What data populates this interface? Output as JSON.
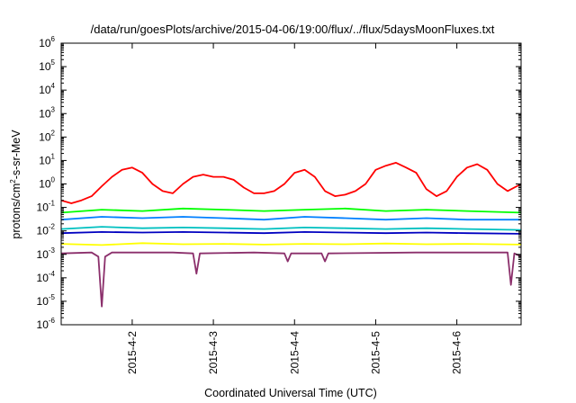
{
  "chart_data": {
    "type": "line",
    "title": "/data/run/goesPlots/archive/2015-04-06/19:00/flux/../flux/5daysMoonFluxes.txt",
    "xlabel": "Coordinated Universal Time (UTC)",
    "ylabel": {
      "prefix": "protons/cm",
      "superscript": "2",
      "suffix": "-s-sr-MeV"
    },
    "yscale": "log",
    "ylim": [
      1e-06,
      1000000.0
    ],
    "y_ticks": [
      {
        "base": "10",
        "exp": "-6",
        "value": 1e-06
      },
      {
        "base": "10",
        "exp": "-5",
        "value": 1e-05
      },
      {
        "base": "10",
        "exp": "-4",
        "value": 0.0001
      },
      {
        "base": "10",
        "exp": "-3",
        "value": 0.001
      },
      {
        "base": "10",
        "exp": "-2",
        "value": 0.01
      },
      {
        "base": "10",
        "exp": "-1",
        "value": 0.1
      },
      {
        "base": "10",
        "exp": "0",
        "value": 1
      },
      {
        "base": "10",
        "exp": "1",
        "value": 10
      },
      {
        "base": "10",
        "exp": "2",
        "value": 100
      },
      {
        "base": "10",
        "exp": "3",
        "value": 1000
      },
      {
        "base": "10",
        "exp": "4",
        "value": 10000
      },
      {
        "base": "10",
        "exp": "5",
        "value": 100000
      },
      {
        "base": "10",
        "exp": "6",
        "value": 1000000
      }
    ],
    "xlim": [
      "2015-04-01T03:00",
      "2015-04-06T19:00"
    ],
    "x_ticks": [
      {
        "label": "2015-4-2",
        "value": "2015-04-02T00:00"
      },
      {
        "label": "2015-4-3",
        "value": "2015-04-03T00:00"
      },
      {
        "label": "2015-4-4",
        "value": "2015-04-04T00:00"
      },
      {
        "label": "2015-4-5",
        "value": "2015-04-05T00:00"
      },
      {
        "label": "2015-4-6",
        "value": "2015-04-06T00:00"
      }
    ],
    "grid": false,
    "legend": "none",
    "series": [
      {
        "color": "#ff0000",
        "x": [
          "2015-04-01T03:00",
          "2015-04-01T06:00",
          "2015-04-01T09:00",
          "2015-04-01T12:00",
          "2015-04-01T15:00",
          "2015-04-01T18:00",
          "2015-04-01T21:00",
          "2015-04-02T00:00",
          "2015-04-02T03:00",
          "2015-04-02T06:00",
          "2015-04-02T09:00",
          "2015-04-02T12:00",
          "2015-04-02T15:00",
          "2015-04-02T18:00",
          "2015-04-02T21:00",
          "2015-04-03T00:00",
          "2015-04-03T03:00",
          "2015-04-03T06:00",
          "2015-04-03T09:00",
          "2015-04-03T12:00",
          "2015-04-03T15:00",
          "2015-04-03T18:00",
          "2015-04-03T21:00",
          "2015-04-04T00:00",
          "2015-04-04T03:00",
          "2015-04-04T06:00",
          "2015-04-04T09:00",
          "2015-04-04T12:00",
          "2015-04-04T15:00",
          "2015-04-04T18:00",
          "2015-04-04T21:00",
          "2015-04-05T00:00",
          "2015-04-05T03:00",
          "2015-04-05T06:00",
          "2015-04-05T09:00",
          "2015-04-05T12:00",
          "2015-04-05T15:00",
          "2015-04-05T18:00",
          "2015-04-05T21:00",
          "2015-04-06T00:00",
          "2015-04-06T03:00",
          "2015-04-06T06:00",
          "2015-04-06T09:00",
          "2015-04-06T12:00",
          "2015-04-06T15:00",
          "2015-04-06T19:00"
        ],
        "values": [
          0.2,
          0.15,
          0.2,
          0.3,
          0.8,
          2,
          4,
          5,
          3,
          1,
          0.5,
          0.4,
          1,
          2,
          2.5,
          2,
          2,
          1.5,
          0.7,
          0.4,
          0.4,
          0.5,
          1,
          3,
          4,
          2,
          0.5,
          0.3,
          0.35,
          0.5,
          1,
          4,
          6,
          8,
          5,
          3,
          0.6,
          0.3,
          0.5,
          2,
          5,
          7,
          4,
          1,
          0.5,
          1
        ]
      },
      {
        "color": "#00ff00",
        "x": [
          "2015-04-01T03:00",
          "2015-04-01T15:00",
          "2015-04-02T03:00",
          "2015-04-02T15:00",
          "2015-04-03T03:00",
          "2015-04-03T15:00",
          "2015-04-04T03:00",
          "2015-04-04T15:00",
          "2015-04-05T03:00",
          "2015-04-05T15:00",
          "2015-04-06T03:00",
          "2015-04-06T19:00"
        ],
        "values": [
          0.06,
          0.08,
          0.07,
          0.09,
          0.08,
          0.07,
          0.08,
          0.09,
          0.07,
          0.08,
          0.07,
          0.06
        ]
      },
      {
        "color": "#0080ff",
        "x": [
          "2015-04-01T03:00",
          "2015-04-01T15:00",
          "2015-04-02T03:00",
          "2015-04-02T15:00",
          "2015-04-03T03:00",
          "2015-04-03T15:00",
          "2015-04-04T03:00",
          "2015-04-04T15:00",
          "2015-04-05T03:00",
          "2015-04-05T15:00",
          "2015-04-06T03:00",
          "2015-04-06T19:00"
        ],
        "values": [
          0.03,
          0.04,
          0.035,
          0.04,
          0.035,
          0.03,
          0.04,
          0.035,
          0.03,
          0.035,
          0.03,
          0.03
        ]
      },
      {
        "color": "#00c0c0",
        "x": [
          "2015-04-01T03:00",
          "2015-04-01T15:00",
          "2015-04-02T03:00",
          "2015-04-02T15:00",
          "2015-04-03T03:00",
          "2015-04-03T15:00",
          "2015-04-04T03:00",
          "2015-04-04T15:00",
          "2015-04-05T03:00",
          "2015-04-05T15:00",
          "2015-04-06T03:00",
          "2015-04-06T19:00"
        ],
        "values": [
          0.012,
          0.015,
          0.013,
          0.014,
          0.013,
          0.012,
          0.014,
          0.013,
          0.012,
          0.013,
          0.012,
          0.011
        ]
      },
      {
        "color": "#0000c0",
        "x": [
          "2015-04-01T03:00",
          "2015-04-01T15:00",
          "2015-04-02T03:00",
          "2015-04-02T15:00",
          "2015-04-03T03:00",
          "2015-04-03T15:00",
          "2015-04-04T03:00",
          "2015-04-04T15:00",
          "2015-04-05T03:00",
          "2015-04-05T15:00",
          "2015-04-06T03:00",
          "2015-04-06T19:00"
        ],
        "values": [
          0.008,
          0.009,
          0.0085,
          0.009,
          0.0085,
          0.008,
          0.009,
          0.0085,
          0.008,
          0.0085,
          0.008,
          0.0075
        ]
      },
      {
        "color": "#ffff00",
        "x": [
          "2015-04-01T03:00",
          "2015-04-01T15:00",
          "2015-04-02T03:00",
          "2015-04-02T15:00",
          "2015-04-03T03:00",
          "2015-04-03T15:00",
          "2015-04-04T03:00",
          "2015-04-04T15:00",
          "2015-04-05T03:00",
          "2015-04-05T15:00",
          "2015-04-06T03:00",
          "2015-04-06T19:00"
        ],
        "values": [
          0.0028,
          0.0025,
          0.003,
          0.0027,
          0.0028,
          0.0026,
          0.0028,
          0.0027,
          0.0029,
          0.0027,
          0.0028,
          0.0026
        ]
      },
      {
        "color": "#8b2f6b",
        "x": [
          "2015-04-01T03:00",
          "2015-04-01T12:00",
          "2015-04-01T14:00",
          "2015-04-01T15:00",
          "2015-04-01T16:00",
          "2015-04-01T18:00",
          "2015-04-02T12:00",
          "2015-04-02T18:00",
          "2015-04-02T19:00",
          "2015-04-02T20:00",
          "2015-04-03T12:00",
          "2015-04-03T21:00",
          "2015-04-03T22:00",
          "2015-04-03T23:00",
          "2015-04-04T08:00",
          "2015-04-04T09:00",
          "2015-04-04T10:00",
          "2015-04-05T12:00",
          "2015-04-06T12:00",
          "2015-04-06T15:00",
          "2015-04-06T16:00",
          "2015-04-06T17:00",
          "2015-04-06T19:00"
        ],
        "values": [
          0.0011,
          0.0012,
          0.0008,
          6e-06,
          0.0008,
          0.0012,
          0.0012,
          0.0011,
          0.00015,
          0.0011,
          0.0012,
          0.0011,
          0.0005,
          0.0011,
          0.0011,
          0.0005,
          0.0011,
          0.0012,
          0.0012,
          0.0012,
          5e-05,
          0.0011,
          0.0008
        ]
      }
    ]
  }
}
